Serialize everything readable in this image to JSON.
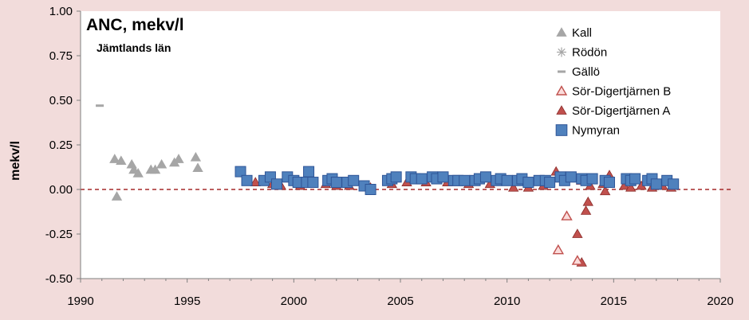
{
  "chart_data": {
    "type": "scatter",
    "title": "ANC, mekv/l",
    "subtitle": "Jämtlands län",
    "ylabel": "mekv/l",
    "xlabel": "",
    "xlim": [
      1990,
      2020
    ],
    "ylim": [
      -0.5,
      1.0
    ],
    "x_ticks": [
      "1990",
      "1995",
      "2000",
      "2005",
      "2010",
      "2015",
      "2020"
    ],
    "y_ticks": [
      "1.00",
      "0.75",
      "0.50",
      "0.25",
      "0.00",
      "-0.25",
      "-0.50"
    ],
    "reference_line": {
      "y": 0,
      "style": "dashed",
      "color": "#a52a2a"
    },
    "legend_position": "top-right",
    "series": [
      {
        "name": "Kall",
        "marker": "triangle",
        "color": "#a6a6a6",
        "points": [
          [
            1991.6,
            0.17
          ],
          [
            1991.7,
            -0.04
          ],
          [
            1991.9,
            0.16
          ],
          [
            1992.4,
            0.14
          ],
          [
            1992.5,
            0.11
          ],
          [
            1992.7,
            0.09
          ],
          [
            1993.3,
            0.11
          ],
          [
            1993.5,
            0.11
          ],
          [
            1993.8,
            0.14
          ],
          [
            1994.4,
            0.15
          ],
          [
            1994.6,
            0.17
          ],
          [
            1995.4,
            0.18
          ],
          [
            1995.5,
            0.12
          ]
        ]
      },
      {
        "name": "Rödön",
        "marker": "asterisk",
        "color": "#a6a6a6",
        "points": []
      },
      {
        "name": "Gällö",
        "marker": "dash",
        "color": "#a6a6a6",
        "points": [
          [
            1990.9,
            0.47
          ]
        ]
      },
      {
        "name": "Sör-Digertjärnen B",
        "marker": "triangle-open",
        "color": "#c0504d",
        "points": [
          [
            2012.4,
            -0.34
          ],
          [
            2012.8,
            -0.15
          ],
          [
            2013.3,
            -0.4
          ],
          [
            2013.5,
            0.05
          ]
        ]
      },
      {
        "name": "Sör-Digertjärnen A",
        "marker": "triangle",
        "color": "#c0504d",
        "points": [
          [
            1998.2,
            0.04
          ],
          [
            1999.0,
            0.03
          ],
          [
            1999.4,
            0.02
          ],
          [
            2000.3,
            0.02
          ],
          [
            2001.5,
            0.03
          ],
          [
            2002.0,
            0.02
          ],
          [
            2002.6,
            0.02
          ],
          [
            2003.6,
            0.01
          ],
          [
            2004.6,
            0.03
          ],
          [
            2005.3,
            0.04
          ],
          [
            2006.2,
            0.04
          ],
          [
            2007.2,
            0.04
          ],
          [
            2008.2,
            0.03
          ],
          [
            2009.2,
            0.03
          ],
          [
            2010.3,
            0.01
          ],
          [
            2011.0,
            0.01
          ],
          [
            2011.7,
            0.02
          ],
          [
            2012.3,
            0.1
          ],
          [
            2013.3,
            -0.25
          ],
          [
            2013.5,
            -0.41
          ],
          [
            2013.7,
            -0.12
          ],
          [
            2013.8,
            -0.07
          ],
          [
            2013.9,
            0.02
          ],
          [
            2014.5,
            0.03
          ],
          [
            2014.6,
            -0.01
          ],
          [
            2014.8,
            0.08
          ],
          [
            2015.5,
            0.02
          ],
          [
            2015.8,
            0.01
          ],
          [
            2016.3,
            0.02
          ],
          [
            2016.8,
            0.01
          ],
          [
            2017.3,
            0.02
          ],
          [
            2017.7,
            0.01
          ]
        ]
      },
      {
        "name": "Nymyran",
        "marker": "square",
        "color": "#4f81bd",
        "points": [
          [
            1997.5,
            0.1
          ],
          [
            1997.8,
            0.05
          ],
          [
            1998.6,
            0.05
          ],
          [
            1998.9,
            0.07
          ],
          [
            1999.2,
            0.03
          ],
          [
            1999.7,
            0.07
          ],
          [
            2000.0,
            0.05
          ],
          [
            2000.2,
            0.04
          ],
          [
            2000.6,
            0.04
          ],
          [
            2000.7,
            0.1
          ],
          [
            2000.9,
            0.04
          ],
          [
            2001.6,
            0.05
          ],
          [
            2001.8,
            0.06
          ],
          [
            2002.0,
            0.04
          ],
          [
            2002.5,
            0.04
          ],
          [
            2002.8,
            0.05
          ],
          [
            2003.3,
            0.02
          ],
          [
            2003.6,
            0.0
          ],
          [
            2004.4,
            0.05
          ],
          [
            2004.6,
            0.06
          ],
          [
            2004.8,
            0.07
          ],
          [
            2005.5,
            0.07
          ],
          [
            2005.7,
            0.06
          ],
          [
            2006.0,
            0.06
          ],
          [
            2006.5,
            0.07
          ],
          [
            2006.7,
            0.06
          ],
          [
            2007.0,
            0.07
          ],
          [
            2007.5,
            0.05
          ],
          [
            2007.7,
            0.05
          ],
          [
            2008.0,
            0.05
          ],
          [
            2008.5,
            0.05
          ],
          [
            2008.7,
            0.06
          ],
          [
            2009.0,
            0.07
          ],
          [
            2009.5,
            0.05
          ],
          [
            2009.7,
            0.06
          ],
          [
            2010.0,
            0.05
          ],
          [
            2010.5,
            0.05
          ],
          [
            2010.7,
            0.06
          ],
          [
            2011.0,
            0.04
          ],
          [
            2011.5,
            0.05
          ],
          [
            2011.8,
            0.05
          ],
          [
            2012.0,
            0.04
          ],
          [
            2012.5,
            0.07
          ],
          [
            2012.7,
            0.05
          ],
          [
            2013.0,
            0.07
          ],
          [
            2013.5,
            0.06
          ],
          [
            2013.7,
            0.05
          ],
          [
            2014.0,
            0.06
          ],
          [
            2014.6,
            0.05
          ],
          [
            2014.8,
            0.04
          ],
          [
            2015.6,
            0.06
          ],
          [
            2015.8,
            0.05
          ],
          [
            2016.0,
            0.06
          ],
          [
            2016.6,
            0.05
          ],
          [
            2016.8,
            0.06
          ],
          [
            2017.0,
            0.03
          ],
          [
            2017.5,
            0.05
          ],
          [
            2017.8,
            0.03
          ]
        ]
      }
    ]
  }
}
